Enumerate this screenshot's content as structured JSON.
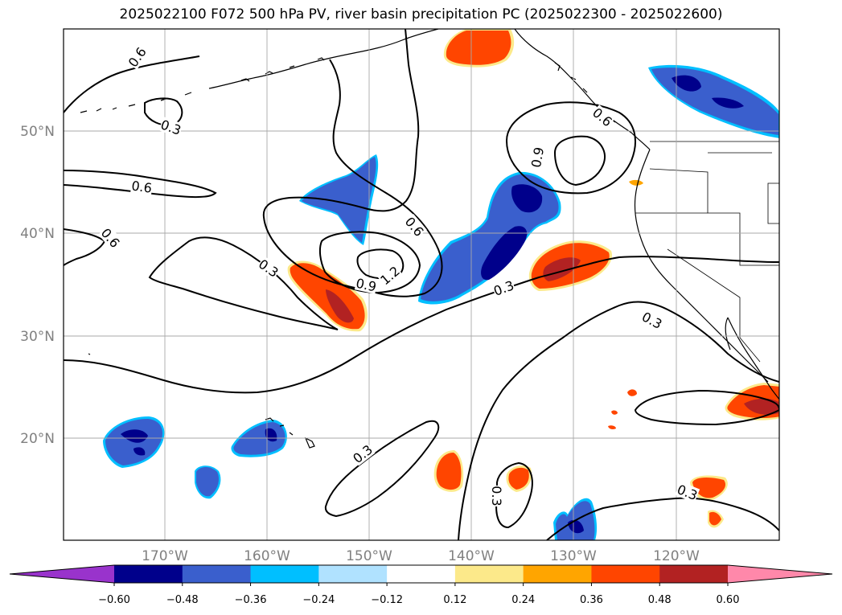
{
  "title": "2025022100 F072 500 hPa PV, river basin precipitation PC (2025022300 - 2025022600)",
  "axes": {
    "lon_ticks": [
      "170°W",
      "160°W",
      "150°W",
      "140°W",
      "130°W",
      "120°W"
    ],
    "lat_ticks": [
      "50°N",
      "40°N",
      "30°N",
      "20°N"
    ]
  },
  "contour_labels": [
    "0.6",
    "0.3",
    "0.6",
    "0.6",
    "0.6",
    "0.9",
    "0.3",
    "0.9",
    "1.2",
    "0.3",
    "0.3",
    "0.3",
    "0.3",
    "0.3",
    "0.6"
  ],
  "colorbar": {
    "tick_labels": [
      "−0.60",
      "−0.48",
      "−0.36",
      "−0.24",
      "−0.12",
      "0.12",
      "0.24",
      "0.36",
      "0.48",
      "0.60"
    ],
    "colors": [
      "#9933cc",
      "#00008b",
      "#3a5fcd",
      "#00bfff",
      "#b0e2ff",
      "#ffffff",
      "#fce98a",
      "#ffa500",
      "#ff4500",
      "#b22222",
      "#ff88aa"
    ]
  },
  "colors": {
    "pos_light": "#fce98a",
    "pos_mid": "#ffa500",
    "pos_strong": "#ff4500",
    "pos_max": "#b22222",
    "neg_light": "#b0e2ff",
    "neg_mid": "#00bfff",
    "neg_strong": "#3a5fcd",
    "neg_max": "#00008b"
  }
}
